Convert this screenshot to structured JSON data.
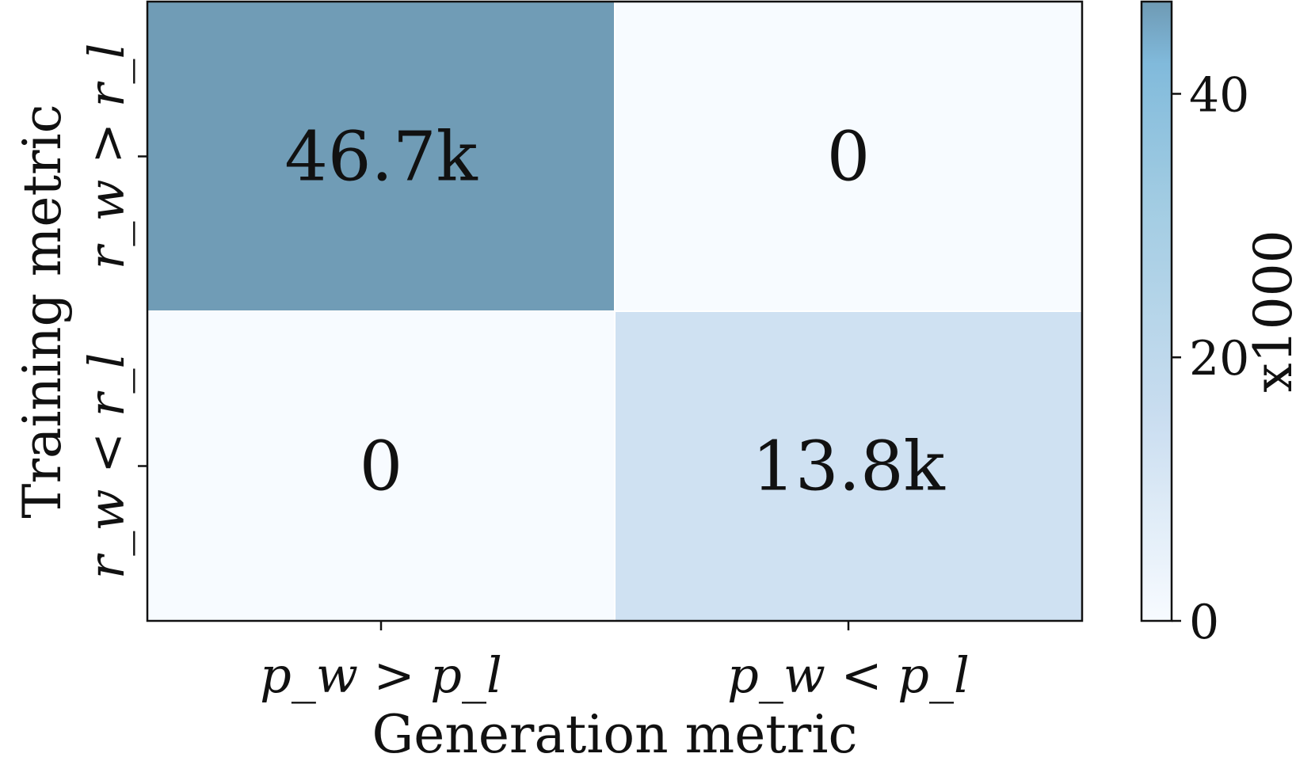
{
  "chart_data": {
    "type": "heatmap",
    "title": "",
    "xlabel": "Generation metric",
    "ylabel": "Training metric",
    "x_categories": [
      "p_w > p_l",
      "p_w < p_l"
    ],
    "y_categories": [
      "r_w > r_l",
      "r_w < r_l"
    ],
    "values": [
      [
        46.7,
        0
      ],
      [
        0,
        13.8
      ]
    ],
    "cell_labels": [
      [
        "46.7k",
        "0"
      ],
      [
        "0",
        "13.8k"
      ]
    ],
    "colorbar": {
      "label": "x1000",
      "range": [
        0,
        47
      ],
      "ticks": [
        0,
        20,
        40
      ],
      "tick_labels": [
        "0",
        "20",
        "40"
      ],
      "colors": [
        "#f7fbff",
        "#c6dbef",
        "#9ecae1",
        "#6baed6"
      ],
      "alpha": 0.95
    },
    "grid": false,
    "cell_border": "#ffffff"
  }
}
